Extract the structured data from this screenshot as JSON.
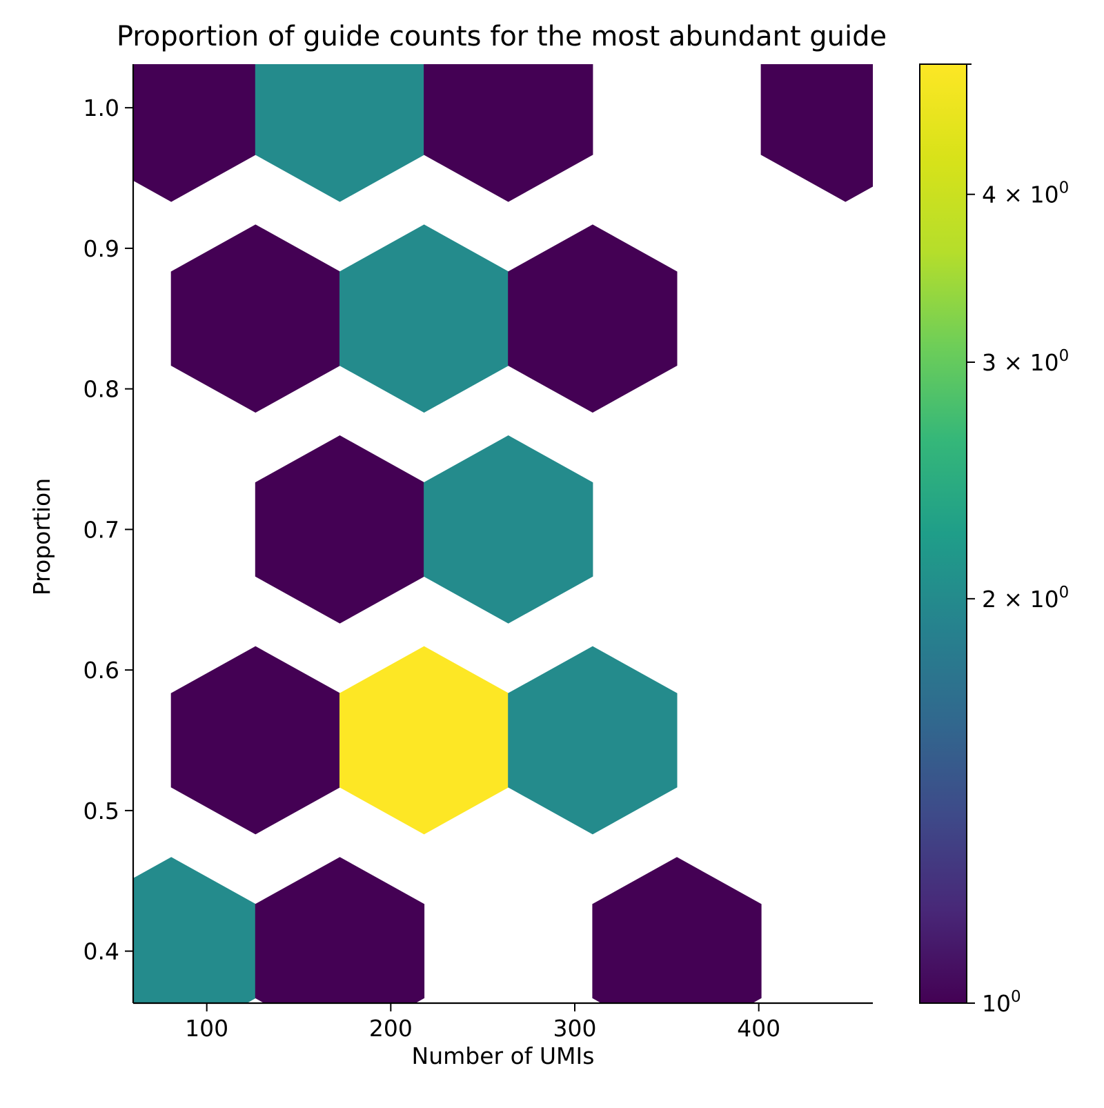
{
  "chart_data": {
    "type": "hexbin",
    "title": "Proportion of guide counts for the most abundant guide",
    "xlabel": "Number of UMIs",
    "ylabel": "Proportion",
    "xlim": [
      60,
      462
    ],
    "ylim": [
      0.363,
      1.031
    ],
    "xticks": [
      100,
      200,
      300,
      400
    ],
    "yticks": [
      0.4,
      0.5,
      0.6,
      0.7,
      0.8,
      0.9,
      1.0
    ],
    "hex_dx": 91.6,
    "hex_dy": 0.1,
    "cells": [
      {
        "x": 80.7,
        "y": 1.0,
        "count": 1
      },
      {
        "x": 172.3,
        "y": 1.0,
        "count": 2
      },
      {
        "x": 263.9,
        "y": 1.0,
        "count": 1
      },
      {
        "x": 447.1,
        "y": 1.0,
        "count": 1
      },
      {
        "x": 126.5,
        "y": 0.85,
        "count": 1
      },
      {
        "x": 218.1,
        "y": 0.85,
        "count": 2
      },
      {
        "x": 309.7,
        "y": 0.85,
        "count": 1
      },
      {
        "x": 172.3,
        "y": 0.7,
        "count": 1
      },
      {
        "x": 263.9,
        "y": 0.7,
        "count": 2
      },
      {
        "x": 126.5,
        "y": 0.55,
        "count": 1
      },
      {
        "x": 218.1,
        "y": 0.55,
        "count": 5
      },
      {
        "x": 309.7,
        "y": 0.55,
        "count": 2
      },
      {
        "x": 80.7,
        "y": 0.4,
        "count": 2
      },
      {
        "x": 172.3,
        "y": 0.4,
        "count": 1
      },
      {
        "x": 355.5,
        "y": 0.4,
        "count": 1
      }
    ],
    "colorbar": {
      "scale": "log",
      "cmap": "viridis",
      "vmin": 1,
      "vmax": 5,
      "ticks": [
        1,
        2,
        3,
        4
      ],
      "tick_labels": [
        {
          "base": "10",
          "exp": "0"
        },
        {
          "mant": "2",
          "base": "10",
          "exp": "0"
        },
        {
          "mant": "3",
          "base": "10",
          "exp": "0"
        },
        {
          "mant": "4",
          "base": "10",
          "exp": "0"
        }
      ]
    },
    "grid": false
  }
}
